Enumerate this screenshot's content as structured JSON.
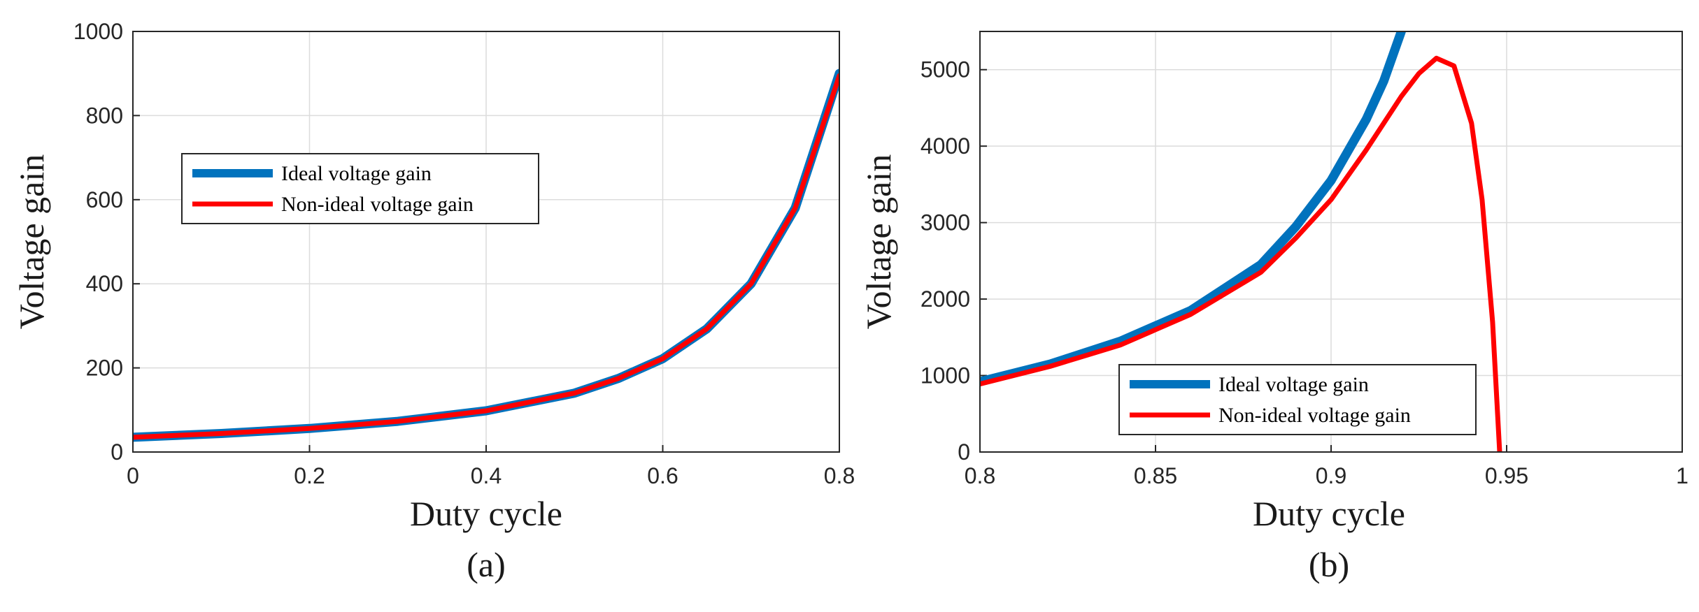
{
  "chart_data": [
    {
      "type": "line",
      "panel_label": "(a)",
      "xlabel": "Duty cycle",
      "ylabel": "Voltage gain",
      "xlim": [
        0,
        0.8
      ],
      "ylim": [
        0,
        1000
      ],
      "xticks": [
        "0",
        "0.2",
        "0.4",
        "0.6",
        "0.8"
      ],
      "yticks": [
        "0",
        "200",
        "400",
        "600",
        "800",
        "1000"
      ],
      "grid": true,
      "legend_position": "upper-left",
      "series": [
        {
          "name": "Ideal voltage gain",
          "color": "#0072bd",
          "x": [
            0,
            0.1,
            0.2,
            0.3,
            0.4,
            0.5,
            0.55,
            0.6,
            0.65,
            0.7,
            0.75,
            0.8
          ],
          "y": [
            35,
            44,
            56,
            73,
            98,
            140,
            175,
            222,
            293,
            400,
            580,
            900
          ]
        },
        {
          "name": "Non-ideal voltage gain",
          "color": "#ff0000",
          "x": [
            0,
            0.1,
            0.2,
            0.3,
            0.4,
            0.5,
            0.55,
            0.6,
            0.65,
            0.7,
            0.75,
            0.8
          ],
          "y": [
            35,
            44,
            56,
            73,
            98,
            140,
            175,
            222,
            293,
            400,
            580,
            895
          ]
        }
      ]
    },
    {
      "type": "line",
      "panel_label": "(b)",
      "xlabel": "Duty cycle",
      "ylabel": "Voltage gain",
      "xlim": [
        0.8,
        1
      ],
      "ylim": [
        0,
        5500
      ],
      "xticks": [
        "0.8",
        "0.85",
        "0.9",
        "0.95",
        "1"
      ],
      "yticks": [
        "0",
        "1000",
        "2000",
        "3000",
        "4000",
        "5000"
      ],
      "grid": true,
      "legend_position": "lower-center",
      "series": [
        {
          "name": "Ideal voltage gain",
          "color": "#0072bd",
          "x": [
            0.8,
            0.82,
            0.84,
            0.86,
            0.88,
            0.89,
            0.9,
            0.91,
            0.915,
            0.92
          ],
          "y": [
            920,
            1150,
            1450,
            1850,
            2450,
            2950,
            3550,
            4350,
            4850,
            5500
          ]
        },
        {
          "name": "Non-ideal voltage gain",
          "color": "#ff0000",
          "x": [
            0.8,
            0.82,
            0.84,
            0.86,
            0.88,
            0.89,
            0.9,
            0.91,
            0.92,
            0.925,
            0.93,
            0.935,
            0.94,
            0.943,
            0.946,
            0.948
          ],
          "y": [
            890,
            1120,
            1400,
            1800,
            2350,
            2800,
            3300,
            3950,
            4650,
            4950,
            5150,
            5050,
            4300,
            3300,
            1700,
            0
          ]
        }
      ]
    }
  ]
}
